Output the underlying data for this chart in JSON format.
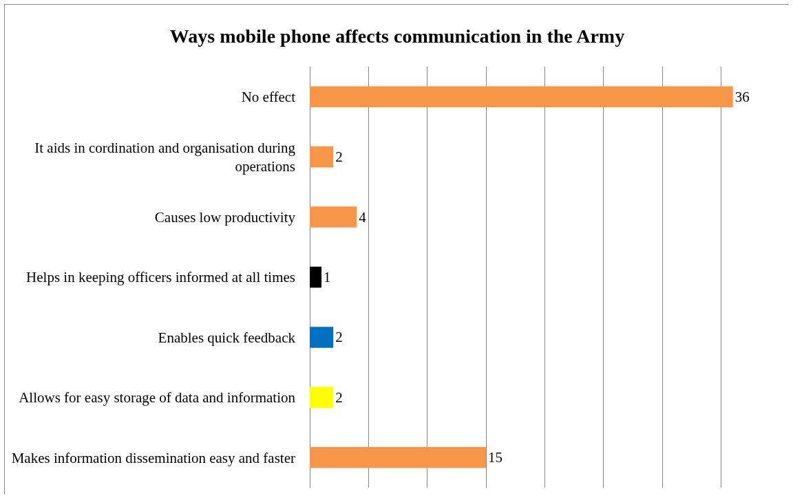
{
  "chart_data": {
    "type": "bar",
    "orientation": "horizontal",
    "title": "Ways mobile phone affects communication in the Army",
    "categories": [
      "No effect",
      "It aids in cordination and organisation during operations",
      "Causes low productivity",
      "Helps in keeping officers informed at all times",
      "Enables quick feedback",
      "Allows for easy storage of data and information",
      "Makes information dissemination easy and faster"
    ],
    "values": [
      36,
      2,
      4,
      1,
      2,
      2,
      15
    ],
    "colors": [
      "#f79646",
      "#f79646",
      "#f79646",
      "#000000",
      "#0070c0",
      "#ffff00",
      "#f79646"
    ],
    "grid": "x",
    "tick_labels": "y",
    "data_labels": true
  }
}
